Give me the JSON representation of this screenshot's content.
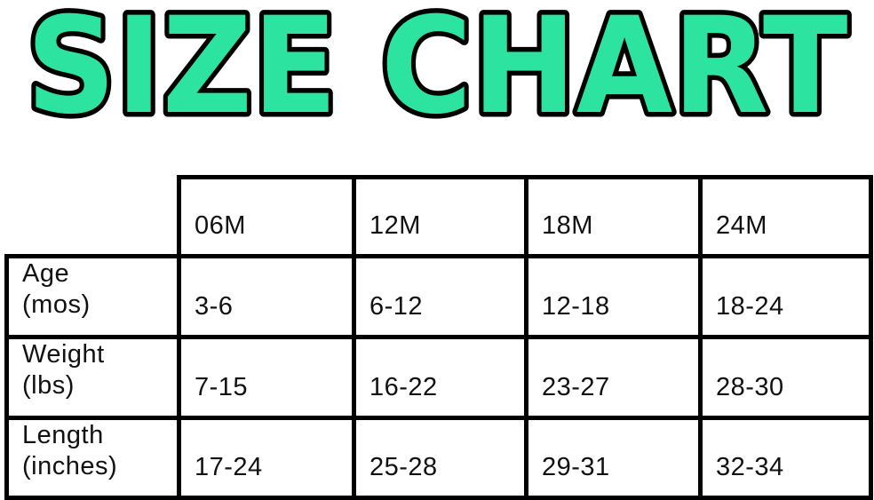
{
  "colors": {
    "title_fill": "#2de3a0",
    "title_outline": "#000000",
    "table_border": "#000000",
    "text": "#111111",
    "background": "#ffffff"
  },
  "chart_data": {
    "type": "table",
    "title": "SIZE CHART",
    "columns": [
      "06M",
      "12M",
      "18M",
      "24M"
    ],
    "rows": [
      {
        "label": "Age",
        "unit": "(mos)",
        "values": [
          "3-6",
          "6-12",
          "12-18",
          "18-24"
        ]
      },
      {
        "label": "Weight",
        "unit": "(lbs)",
        "values": [
          "7-15",
          "16-22",
          "23-27",
          "28-30"
        ]
      },
      {
        "label": "Length",
        "unit": "(inches)",
        "values": [
          "17-24",
          "25-28",
          "29-31",
          "32-34"
        ]
      }
    ]
  }
}
